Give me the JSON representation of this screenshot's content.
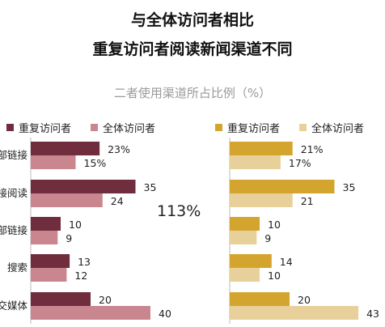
{
  "title_line1": "与全体访问者相比",
  "title_line2": "重复访问者阅读新闻渠道不同",
  "subtitle": "二者使用渠道所占比例（%）",
  "center_note": "113%",
  "colors": {
    "left_repeat": "#6f2d3e",
    "left_all": "#c9868f",
    "right_repeat": "#d4a52e",
    "right_all": "#e8d09a"
  },
  "chart_data": [
    {
      "type": "bar",
      "orientation": "horizontal",
      "categories": [
        "内部链接",
        "直接阅读",
        "外部链接",
        "搜索",
        "社交媒体"
      ],
      "series": [
        {
          "name": "重复访问者",
          "values": [
            23,
            35,
            10,
            13,
            20
          ],
          "labels": [
            "23%",
            "35",
            "10",
            "13",
            "20"
          ]
        },
        {
          "name": "全体访问者",
          "values": [
            15,
            24,
            9,
            12,
            40
          ],
          "labels": [
            "15%",
            "24",
            "9",
            "12",
            "40"
          ]
        }
      ]
    },
    {
      "type": "bar",
      "orientation": "horizontal",
      "categories": [
        "内部链接",
        "直接阅读",
        "外部链接",
        "搜索",
        "社交媒体"
      ],
      "series": [
        {
          "name": "重复访问者",
          "values": [
            21,
            35,
            10,
            14,
            20
          ],
          "labels": [
            "21%",
            "35",
            "10",
            "14",
            "20"
          ]
        },
        {
          "name": "全体访问者",
          "values": [
            17,
            21,
            9,
            10,
            43
          ],
          "labels": [
            "17%",
            "21",
            "9",
            "10",
            "43"
          ]
        }
      ]
    }
  ]
}
